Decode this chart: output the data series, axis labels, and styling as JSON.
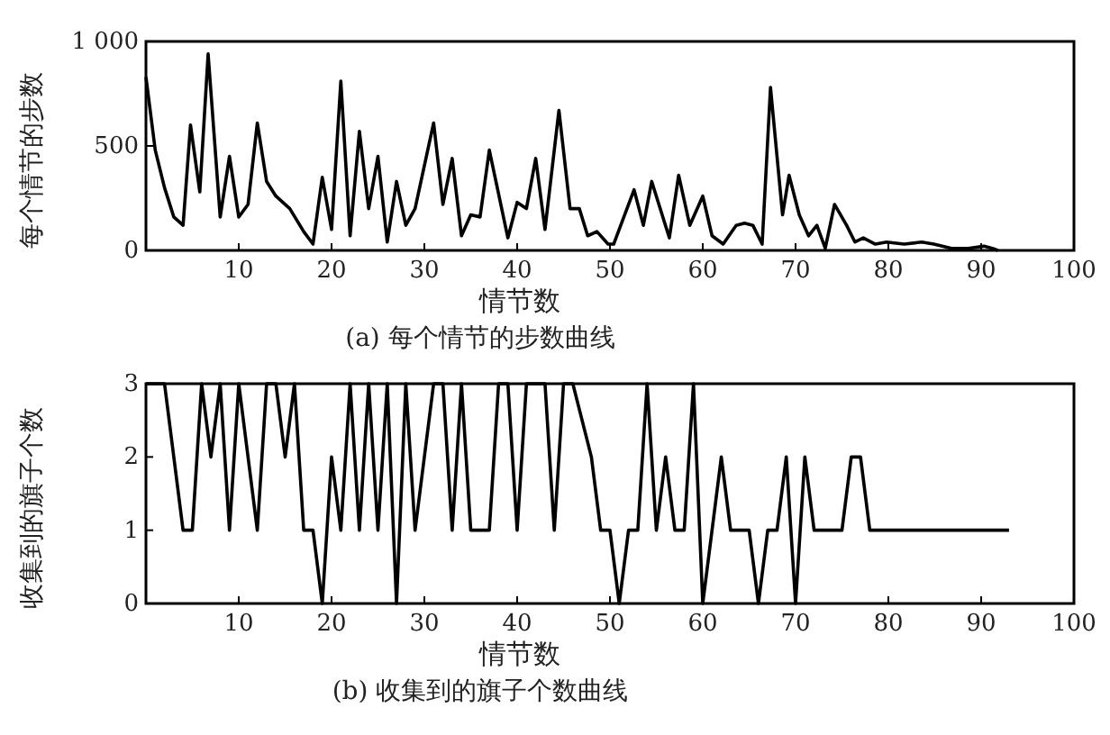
{
  "chart_data": [
    {
      "type": "line",
      "xlabel": "情节数",
      "ylabel": "每个情节的步数",
      "annotations": [
        "(a) 每个情节的步数曲线"
      ],
      "xlim": [
        0,
        100
      ],
      "ylim": [
        0,
        1000
      ],
      "xticks": [
        10,
        20,
        30,
        40,
        50,
        60,
        70,
        80,
        90,
        100
      ],
      "yticks": [
        0,
        500,
        {
          "value": 1000,
          "label": "1 000"
        }
      ],
      "series": [
        {
          "color": "#000000",
          "x": [
            0,
            1,
            2,
            3,
            4,
            4.8,
            5.8,
            6.7,
            8,
            9,
            10,
            11,
            12,
            13,
            14,
            15.5,
            17,
            18,
            19,
            20,
            21,
            22,
            23,
            24,
            25,
            26,
            27,
            28,
            29,
            31,
            32,
            33,
            34,
            35,
            36,
            37,
            39,
            40,
            41,
            42,
            43,
            44.5,
            45.7,
            46.7,
            47.6,
            48.6,
            49.8,
            50.4,
            52.6,
            53.6,
            54.5,
            56.4,
            57.4,
            58.6,
            60,
            61,
            62.2,
            63.6,
            64.5,
            65.4,
            66.4,
            67.3,
            68.6,
            69.3,
            70.4,
            71.4,
            72.3,
            73.2,
            74.2,
            75.5,
            76.4,
            77.3,
            78.6,
            79.8,
            81.7,
            83.6,
            84.9,
            86.8,
            88.6,
            90.3,
            91.2,
            91.8
          ],
          "values": [
            830,
            480,
            300,
            160,
            120,
            600,
            280,
            940,
            160,
            450,
            160,
            220,
            610,
            330,
            260,
            200,
            90,
            30,
            350,
            100,
            810,
            70,
            570,
            200,
            450,
            40,
            330,
            120,
            200,
            610,
            220,
            440,
            70,
            170,
            160,
            480,
            60,
            230,
            200,
            440,
            100,
            670,
            200,
            200,
            70,
            90,
            30,
            30,
            290,
            120,
            330,
            60,
            360,
            120,
            260,
            70,
            30,
            120,
            130,
            120,
            30,
            780,
            170,
            360,
            170,
            70,
            120,
            10,
            220,
            120,
            40,
            60,
            30,
            40,
            30,
            40,
            30,
            10,
            10,
            20,
            10,
            0
          ]
        }
      ]
    },
    {
      "type": "line",
      "xlabel": "情节数",
      "ylabel": "收集到的旗子个数",
      "annotations": [
        "(b) 收集到的旗子个数曲线"
      ],
      "xlim": [
        0,
        100
      ],
      "ylim": [
        0,
        3
      ],
      "xticks": [
        10,
        20,
        30,
        40,
        50,
        60,
        70,
        80,
        90,
        100
      ],
      "yticks": [
        0,
        1,
        2,
        3
      ],
      "series": [
        {
          "color": "#000000",
          "x": [
            0,
            2,
            4,
            5,
            6,
            7,
            8,
            9,
            10,
            12,
            13,
            14,
            15,
            16,
            17,
            18,
            19,
            20,
            21,
            22,
            23,
            24,
            25,
            26,
            27,
            28,
            29,
            31,
            32,
            33,
            34,
            35,
            37,
            38,
            39,
            40,
            41,
            43,
            44,
            45,
            46,
            48,
            49,
            50,
            51,
            52,
            53,
            54,
            55,
            56,
            57,
            58,
            59,
            60,
            62,
            63,
            65,
            66,
            67,
            68,
            69,
            70,
            71,
            72,
            75,
            76,
            77,
            78,
            93
          ],
          "values": [
            3,
            3,
            1,
            1,
            3,
            2,
            3,
            1,
            3,
            1,
            3,
            3,
            2,
            3,
            1,
            1,
            0,
            2,
            1,
            3,
            1,
            3,
            1,
            3,
            0,
            3,
            1,
            3,
            3,
            1,
            3,
            1,
            1,
            3,
            3,
            1,
            3,
            3,
            1,
            3,
            3,
            2,
            1,
            1,
            0,
            1,
            1,
            3,
            1,
            2,
            1,
            1,
            3,
            0,
            2,
            1,
            1,
            0,
            1,
            1,
            2,
            0,
            2,
            1,
            1,
            2,
            2,
            1,
            1
          ]
        }
      ]
    }
  ]
}
